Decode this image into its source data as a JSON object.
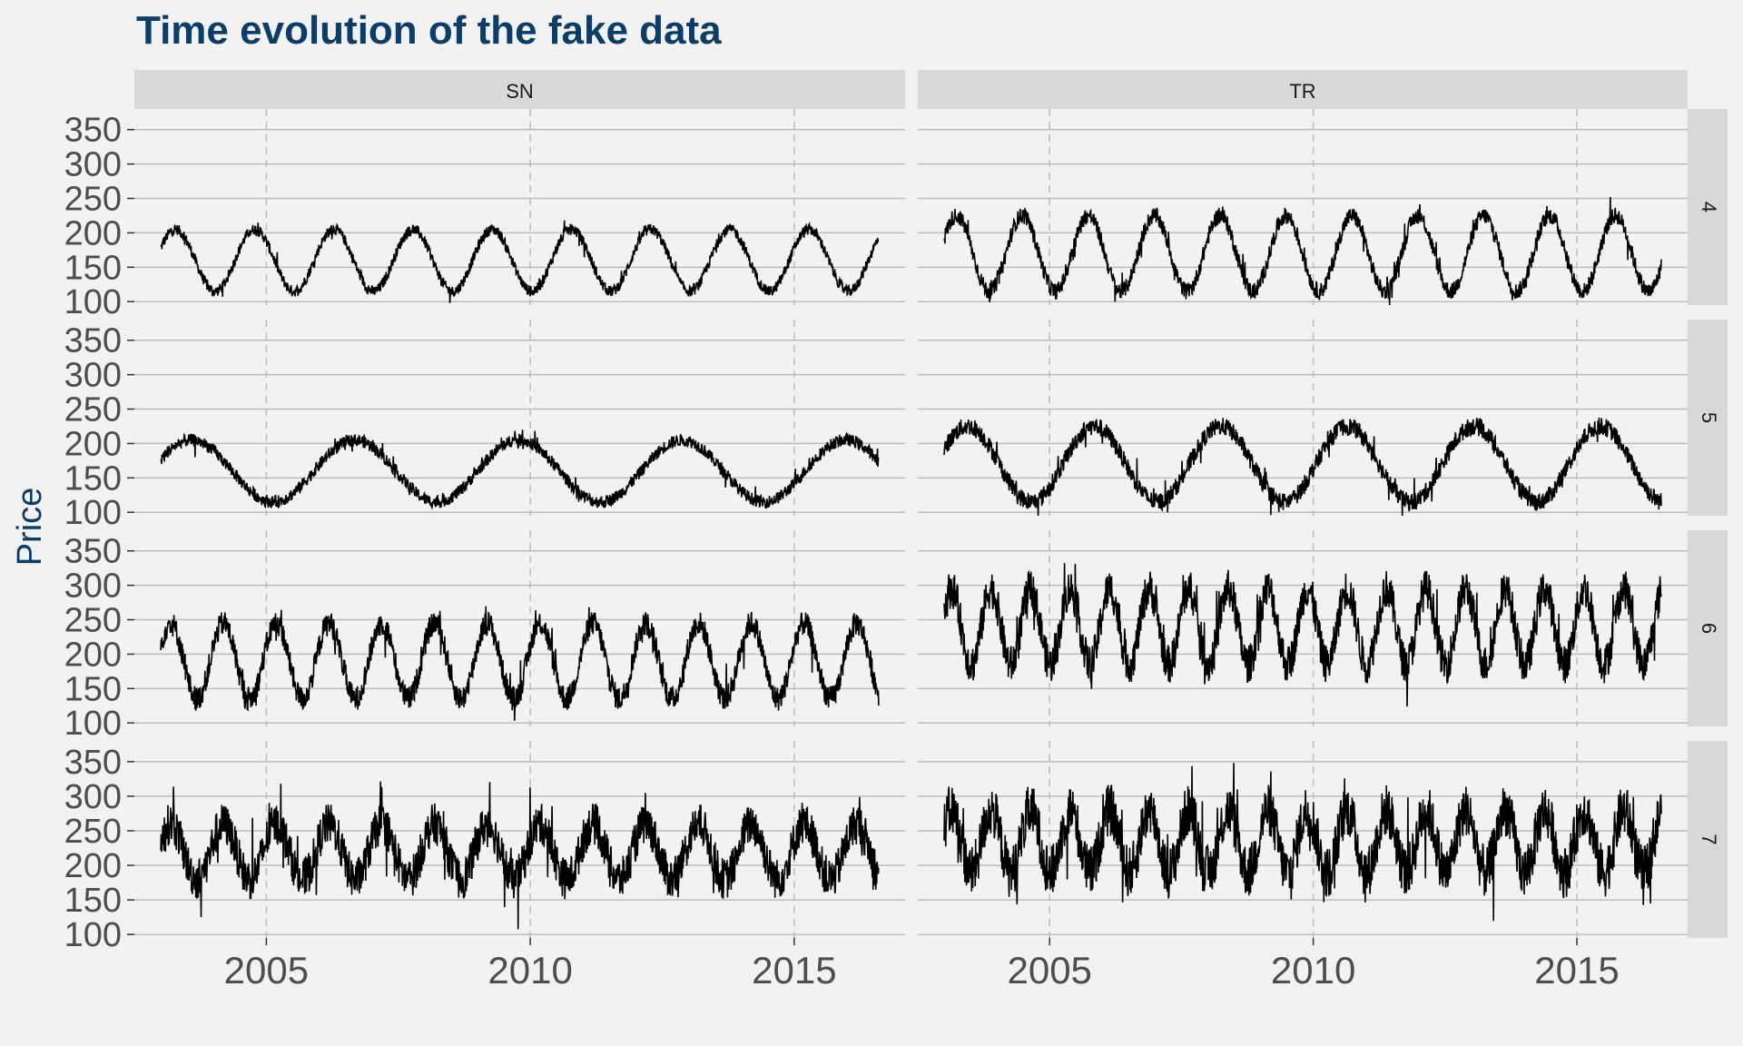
{
  "chart_data": {
    "type": "line",
    "title": "Time evolution of the fake data",
    "xlabel": "",
    "ylabel": "Price",
    "x_range": [
      2003,
      2016.6
    ],
    "x_ticks": [
      "2005",
      "2010",
      "2015"
    ],
    "ylim": [
      95,
      380
    ],
    "y_ticks": [
      "100",
      "150",
      "200",
      "250",
      "300",
      "350"
    ],
    "grid": true,
    "col_facets": [
      "SN",
      "TR"
    ],
    "row_facets": [
      "4",
      "5",
      "6",
      "7"
    ],
    "line_color": "#000000",
    "panels": [
      {
        "col": "SN",
        "row": "4",
        "period_years": 1.5,
        "center": 160,
        "amplitude": 45,
        "noise": 8
      },
      {
        "col": "TR",
        "row": "4",
        "period_years": 1.25,
        "center": 170,
        "amplitude": 55,
        "noise": 12
      },
      {
        "col": "SN",
        "row": "5",
        "period_years": 3.1,
        "center": 160,
        "amplitude": 45,
        "noise": 9
      },
      {
        "col": "TR",
        "row": "5",
        "period_years": 2.4,
        "center": 170,
        "amplitude": 55,
        "noise": 13
      },
      {
        "col": "SN",
        "row": "6",
        "period_years": 1.0,
        "center": 190,
        "amplitude": 55,
        "noise": 18
      },
      {
        "col": "TR",
        "row": "6",
        "period_years": 0.75,
        "center": 240,
        "amplitude": 55,
        "noise": 28
      },
      {
        "col": "SN",
        "row": "7",
        "period_years": 1.0,
        "center": 220,
        "amplitude": 40,
        "noise": 30
      },
      {
        "col": "TR",
        "row": "7",
        "period_years": 0.75,
        "center": 235,
        "amplitude": 45,
        "noise": 38
      }
    ]
  }
}
